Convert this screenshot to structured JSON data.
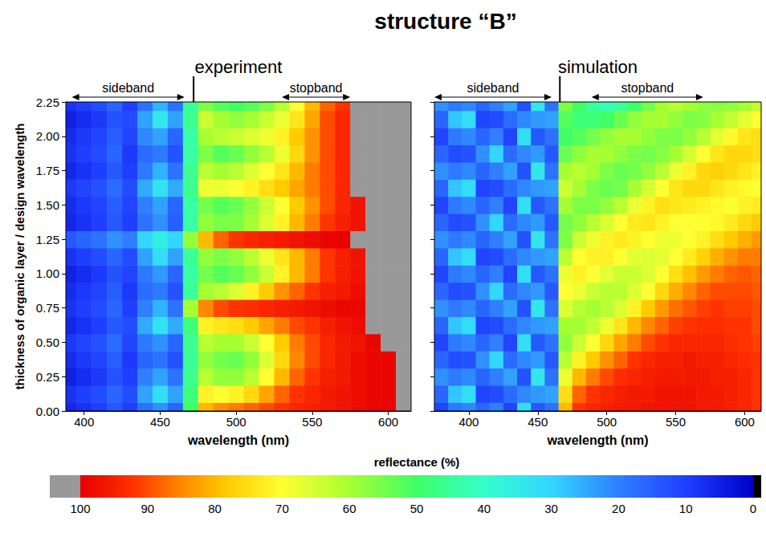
{
  "title": "structure “B”",
  "chart_data": [
    {
      "type": "heatmap",
      "title": "experiment",
      "xlabel": "wavelength (nm)",
      "ylabel": "thickness of organic layer / design wavelength",
      "xlim": [
        388,
        615
      ],
      "xticks": [
        400,
        450,
        500,
        550,
        600
      ],
      "ylim": [
        0,
        2.25
      ],
      "yticks": [
        {
          "value": 0,
          "label": "0.00"
        },
        0.25,
        {
          "value": 0.5,
          "label": "0.50"
        },
        0.75,
        {
          "value": 1,
          "label": "1.00"
        },
        1.25,
        {
          "value": 1.5,
          "label": "1.50"
        },
        1.75,
        {
          "value": 2,
          "label": "2.00"
        },
        2.25
      ],
      "annotations": [
        {
          "text": "sideband",
          "x": [
            392,
            466
          ]
        },
        {
          "text": "stopband",
          "x": [
            530,
            575
          ]
        }
      ],
      "vlines": [
        472
      ],
      "x": [
        390,
        400,
        410,
        420,
        430,
        440,
        450,
        460,
        470,
        480,
        490,
        500,
        510,
        520,
        530,
        540,
        550,
        560,
        570,
        580,
        590,
        600,
        610
      ],
      "y": [
        0,
        0.125,
        0.25,
        0.375,
        0.5,
        0.625,
        0.75,
        0.875,
        1,
        1.125,
        1.25,
        1.375,
        1.5,
        1.625,
        1.75,
        1.875,
        2,
        2.125,
        2.25
      ],
      "reflectance": [
        [
          6,
          8,
          5,
          7,
          9,
          6,
          8,
          7,
          5,
          8,
          14,
          6,
          7,
          9,
          6,
          8,
          7,
          5,
          8
        ],
        [
          8,
          10,
          7,
          9,
          11,
          8,
          10,
          9,
          7,
          10,
          16,
          8,
          9,
          11,
          8,
          10,
          9,
          7,
          10
        ],
        [
          10,
          12,
          9,
          11,
          13,
          10,
          12,
          11,
          9,
          12,
          18,
          10,
          11,
          13,
          10,
          12,
          11,
          9,
          12
        ],
        [
          14,
          16,
          13,
          15,
          17,
          14,
          16,
          15,
          13,
          16,
          22,
          14,
          15,
          17,
          14,
          16,
          15,
          13,
          16
        ],
        [
          10,
          12,
          10,
          9,
          11,
          12,
          10,
          9,
          11,
          12,
          20,
          10,
          11,
          12,
          10,
          9,
          11,
          12,
          10
        ],
        [
          18,
          24,
          20,
          16,
          19,
          25,
          20,
          17,
          19,
          24,
          30,
          18,
          20,
          25,
          19,
          17,
          21,
          24,
          18
        ],
        [
          22,
          32,
          24,
          18,
          22,
          33,
          26,
          19,
          23,
          32,
          36,
          22,
          24,
          33,
          26,
          19,
          24,
          34,
          26
        ],
        [
          16,
          24,
          18,
          13,
          16,
          25,
          18,
          13,
          16,
          24,
          30,
          15,
          16,
          25,
          18,
          13,
          16,
          24,
          18
        ],
        [
          50,
          48,
          46,
          45,
          46,
          48,
          60,
          45,
          44,
          45,
          58,
          44,
          44,
          46,
          46,
          44,
          44,
          46,
          45
        ],
        [
          80,
          72,
          62,
          58,
          62,
          72,
          85,
          60,
          55,
          58,
          80,
          58,
          55,
          68,
          62,
          56,
          60,
          64,
          56
        ],
        [
          84,
          70,
          58,
          55,
          60,
          74,
          90,
          62,
          52,
          56,
          88,
          56,
          52,
          68,
          60,
          52,
          62,
          60,
          52
        ],
        [
          86,
          72,
          58,
          54,
          60,
          75,
          92,
          66,
          54,
          58,
          92,
          56,
          54,
          70,
          62,
          54,
          64,
          58,
          50
        ],
        [
          88,
          76,
          62,
          58,
          64,
          78,
          93,
          72,
          58,
          62,
          94,
          60,
          58,
          72,
          66,
          58,
          66,
          60,
          52
        ],
        [
          90,
          82,
          70,
          66,
          70,
          82,
          94,
          78,
          64,
          68,
          95,
          66,
          64,
          75,
          70,
          62,
          68,
          64,
          56
        ],
        [
          92,
          88,
          80,
          76,
          78,
          86,
          95,
          84,
          72,
          74,
          96,
          72,
          70,
          78,
          74,
          68,
          72,
          68,
          62
        ],
        [
          94,
          92,
          88,
          85,
          86,
          90,
          96,
          88,
          80,
          80,
          97,
          80,
          78,
          82,
          80,
          76,
          78,
          74,
          70
        ],
        [
          95,
          94,
          92,
          90,
          90,
          92,
          97,
          92,
          86,
          86,
          98,
          86,
          84,
          86,
          86,
          84,
          84,
          82,
          80
        ],
        [
          96,
          96,
          95,
          94,
          94,
          95,
          98,
          95,
          92,
          92,
          99,
          92,
          90,
          90,
          90,
          90,
          90,
          90,
          88
        ],
        [
          97,
          97,
          96,
          96,
          96,
          97,
          99,
          96,
          95,
          95,
          100,
          95,
          94,
          94,
          94,
          94,
          94,
          94,
          92
        ],
        [
          98,
          98,
          98,
          98,
          97,
          98,
          99,
          98,
          97,
          97,
          102,
          97,
          97,
          102,
          102,
          102,
          102,
          102,
          102
        ],
        [
          99,
          99,
          99,
          99,
          99,
          102,
          102,
          102,
          102,
          102,
          102,
          102,
          102,
          102,
          102,
          102,
          102,
          102,
          102
        ],
        [
          99,
          99,
          99,
          99,
          102,
          102,
          102,
          102,
          102,
          102,
          102,
          102,
          102,
          102,
          102,
          102,
          102,
          102,
          102
        ],
        [
          102,
          102,
          102,
          102,
          102,
          102,
          102,
          102,
          102,
          102,
          102,
          102,
          102,
          102,
          102,
          102,
          102,
          102,
          102
        ]
      ]
    },
    {
      "type": "heatmap",
      "title": "simulation",
      "xlabel": "wavelength (nm)",
      "tick_labels": "x",
      "xlim": [
        375,
        612
      ],
      "xticks": [
        400,
        450,
        500,
        550,
        600
      ],
      "ylim": [
        0,
        2.25
      ],
      "yticks": [
        0,
        0.25,
        0.5,
        0.75,
        1,
        1.25,
        1.5,
        1.75,
        2,
        2.25
      ],
      "annotations": [
        {
          "text": "sideband",
          "x": [
            375,
            460
          ]
        },
        {
          "text": "stopband",
          "x": [
            489,
            570
          ]
        }
      ],
      "vlines": [
        466
      ],
      "x": [
        380,
        390,
        400,
        410,
        420,
        430,
        440,
        450,
        460,
        470,
        480,
        490,
        500,
        510,
        520,
        530,
        540,
        550,
        560,
        570,
        580,
        590,
        600,
        610
      ],
      "y": [
        0,
        0.125,
        0.25,
        0.375,
        0.5,
        0.625,
        0.75,
        0.875,
        1,
        1.125,
        1.25,
        1.375,
        1.5,
        1.625,
        1.75,
        1.875,
        2,
        2.125,
        2.25
      ],
      "reflectance": [
        [
          11,
          16,
          22,
          16,
          11,
          16,
          22,
          16,
          11,
          16,
          22,
          16,
          11,
          16,
          22,
          16,
          11,
          16,
          22
        ],
        [
          19,
          28,
          19,
          12,
          19,
          28,
          19,
          12,
          19,
          28,
          19,
          12,
          19,
          28,
          19,
          12,
          19,
          28,
          19
        ],
        [
          21,
          32,
          21,
          13,
          21,
          32,
          21,
          13,
          21,
          32,
          21,
          13,
          21,
          32,
          21,
          13,
          21,
          32,
          21
        ],
        [
          16,
          11,
          16,
          22,
          16,
          11,
          16,
          22,
          16,
          11,
          16,
          22,
          16,
          11,
          16,
          22,
          16,
          11,
          16
        ],
        [
          20,
          12,
          20,
          30,
          20,
          12,
          20,
          30,
          20,
          12,
          20,
          30,
          20,
          12,
          20,
          30,
          20,
          12,
          20
        ],
        [
          11,
          17,
          24,
          17,
          11,
          17,
          24,
          17,
          11,
          17,
          24,
          17,
          11,
          17,
          24,
          17,
          11,
          17,
          24
        ],
        [
          32,
          21,
          13,
          21,
          32,
          21,
          13,
          21,
          32,
          21,
          13,
          21,
          32,
          21,
          13,
          21,
          32,
          21,
          13
        ],
        [
          14,
          23,
          34,
          23,
          14,
          23,
          34,
          23,
          14,
          23,
          34,
          23,
          14,
          23,
          34,
          23,
          14,
          23,
          34
        ],
        [
          18,
          24,
          18,
          14,
          18,
          24,
          18,
          14,
          18,
          24,
          18,
          14,
          18,
          24,
          18,
          14,
          18,
          24,
          18
        ],
        [
          80,
          75,
          68,
          62,
          58,
          60,
          66,
          70,
          68,
          62,
          56,
          55,
          60,
          64,
          60,
          54,
          50,
          52,
          56
        ],
        [
          92,
          88,
          80,
          72,
          64,
          60,
          62,
          68,
          72,
          70,
          64,
          58,
          56,
          60,
          62,
          58,
          52,
          48,
          50
        ],
        [
          94,
          92,
          86,
          78,
          70,
          63,
          60,
          64,
          70,
          72,
          68,
          62,
          56,
          56,
          60,
          60,
          55,
          48,
          45
        ],
        [
          95,
          94,
          90,
          84,
          76,
          68,
          62,
          62,
          67,
          72,
          72,
          66,
          58,
          54,
          56,
          60,
          58,
          50,
          42
        ],
        [
          96,
          95,
          93,
          88,
          82,
          74,
          66,
          62,
          64,
          70,
          73,
          70,
          62,
          55,
          54,
          58,
          60,
          54,
          45
        ],
        [
          96,
          96,
          94,
          92,
          86,
          80,
          72,
          66,
          64,
          67,
          72,
          73,
          68,
          60,
          55,
          56,
          60,
          58,
          50
        ],
        [
          97,
          96,
          95,
          94,
          90,
          85,
          78,
          70,
          66,
          66,
          70,
          74,
          72,
          65,
          58,
          55,
          58,
          60,
          55
        ],
        [
          97,
          97,
          96,
          95,
          92,
          88,
          83,
          76,
          70,
          67,
          68,
          72,
          75,
          70,
          62,
          57,
          56,
          60,
          60
        ],
        [
          97,
          97,
          96,
          95,
          94,
          91,
          87,
          81,
          75,
          70,
          68,
          70,
          74,
          74,
          68,
          60,
          56,
          58,
          62
        ],
        [
          97,
          97,
          96,
          96,
          94,
          92,
          89,
          85,
          79,
          73,
          70,
          70,
          73,
          76,
          72,
          65,
          58,
          56,
          60
        ],
        [
          96,
          96,
          96,
          95,
          94,
          93,
          91,
          88,
          83,
          77,
          72,
          70,
          72,
          76,
          76,
          70,
          62,
          57,
          58
        ],
        [
          96,
          96,
          95,
          95,
          94,
          93,
          92,
          90,
          86,
          81,
          75,
          71,
          71,
          74,
          77,
          74,
          67,
          60,
          57
        ],
        [
          95,
          95,
          95,
          94,
          93,
          92,
          91,
          90,
          88,
          84,
          78,
          73,
          70,
          72,
          76,
          76,
          71,
          63,
          58
        ],
        [
          94,
          94,
          94,
          93,
          92,
          92,
          91,
          90,
          89,
          86,
          81,
          76,
          72,
          71,
          74,
          76,
          74,
          67,
          60
        ],
        [
          92,
          92,
          92,
          92,
          91,
          90,
          90,
          89,
          88,
          86,
          83,
          78,
          73,
          70,
          72,
          75,
          75,
          70,
          63
        ]
      ]
    }
  ],
  "colorbar": {
    "title": "reflectance (%)",
    "range": [
      0,
      100
    ],
    "ticks": [
      100,
      90,
      80,
      70,
      60,
      50,
      40,
      30,
      20,
      10,
      0
    ]
  }
}
